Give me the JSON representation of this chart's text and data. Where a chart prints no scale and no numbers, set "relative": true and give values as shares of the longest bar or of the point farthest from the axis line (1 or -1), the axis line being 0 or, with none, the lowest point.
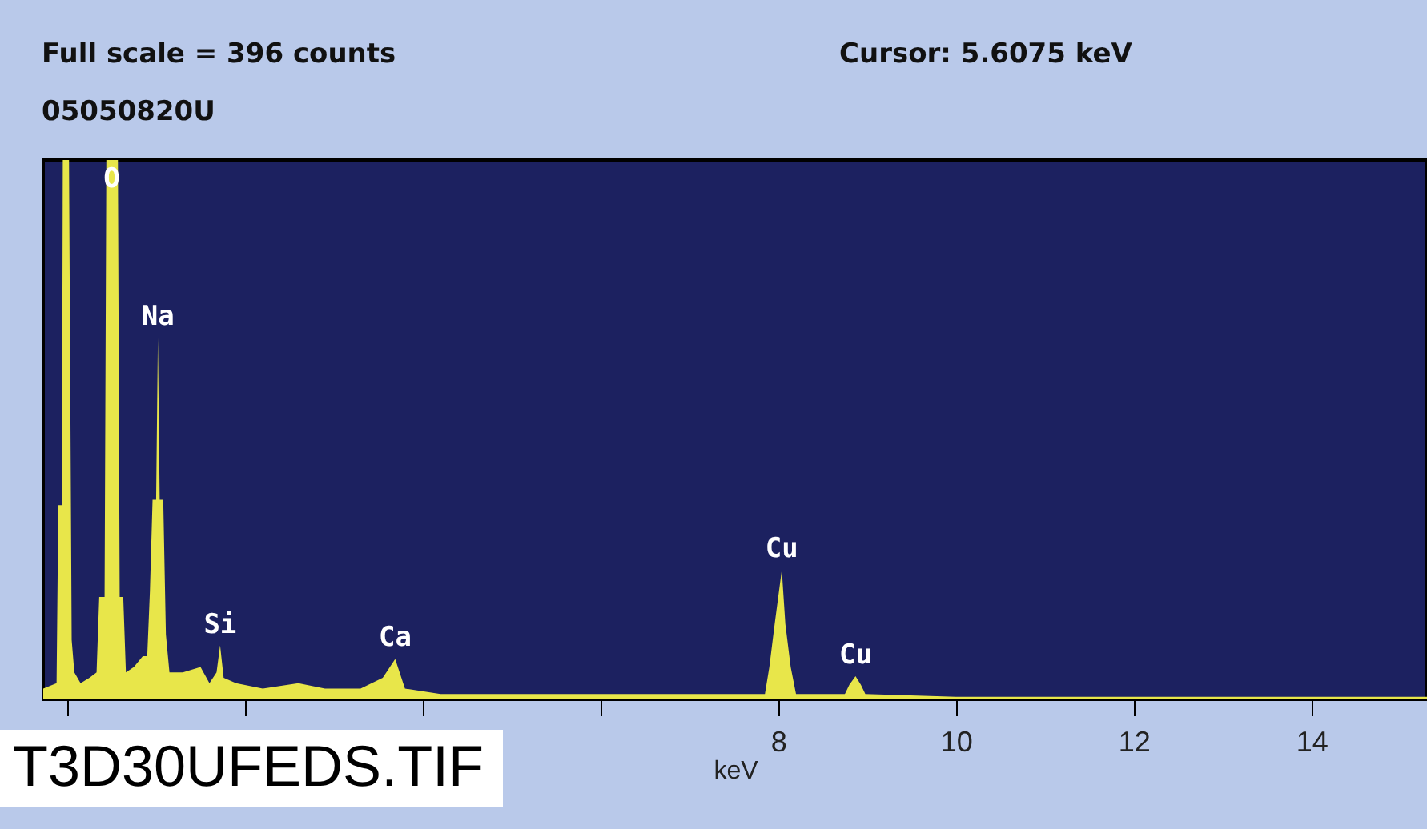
{
  "chart_data": {
    "type": "area",
    "title": "Full scale = 396  counts",
    "subtitle": "05050820U",
    "xlabel": "keV",
    "relative": true,
    "color": "#e8e64a",
    "grid": false,
    "x": [
      -0.27,
      -0.12,
      -0.1,
      -0.06,
      -0.05,
      0.02,
      0.05,
      0.08,
      0.15,
      0.25,
      0.33,
      0.36,
      0.42,
      0.44,
      0.57,
      0.59,
      0.63,
      0.66,
      0.75,
      0.85,
      0.9,
      0.93,
      0.96,
      1.0,
      1.02,
      1.04,
      1.08,
      1.11,
      1.15,
      1.3,
      1.5,
      1.6,
      1.68,
      1.72,
      1.76,
      1.9,
      2.2,
      2.6,
      2.9,
      3.3,
      3.55,
      3.69,
      3.8,
      4.2,
      5,
      6,
      7,
      7.7,
      7.85,
      7.9,
      7.96,
      8.04,
      8.08,
      8.14,
      8.2,
      8.75,
      8.8,
      8.87,
      8.93,
      8.98,
      10,
      12,
      15.3
    ],
    "values": [
      0.02,
      0.03,
      0.36,
      0.36,
      1.0,
      1.0,
      0.11,
      0.05,
      0.03,
      0.04,
      0.05,
      0.19,
      0.19,
      1.0,
      1.0,
      0.19,
      0.19,
      0.05,
      0.06,
      0.08,
      0.08,
      0.2,
      0.37,
      0.37,
      0.67,
      0.37,
      0.37,
      0.12,
      0.05,
      0.05,
      0.06,
      0.03,
      0.05,
      0.1,
      0.04,
      0.03,
      0.02,
      0.03,
      0.02,
      0.02,
      0.04,
      0.075,
      0.02,
      0.01,
      0.01,
      0.01,
      0.01,
      0.01,
      0.01,
      0.06,
      0.14,
      0.24,
      0.14,
      0.06,
      0.01,
      0.01,
      0.027,
      0.043,
      0.027,
      0.01,
      0.005,
      0.005,
      0.005
    ],
    "xlim": [
      -0.27,
      15.3
    ],
    "xticks": [
      {
        "value": 0,
        "label": null
      },
      {
        "value": 2,
        "label": null
      },
      {
        "value": 4,
        "label": null
      },
      {
        "value": 6,
        "label": null
      },
      8,
      10,
      12,
      14
    ],
    "annotations": [
      "Cursor:  5.6075 keV",
      "T3D30UFEDS.TIF",
      {
        "text": "O",
        "x": 0.5,
        "y": 1.0
      },
      {
        "text": "Na",
        "x": 1.02,
        "y": 0.67
      },
      {
        "text": "Si",
        "x": 1.72,
        "y": 0.1
      },
      {
        "text": "Ca",
        "x": 3.69,
        "y": 0.075
      },
      {
        "text": "Cu",
        "x": 8.04,
        "y": 0.24
      },
      {
        "text": "Cu",
        "x": 8.87,
        "y": 0.043
      }
    ]
  }
}
